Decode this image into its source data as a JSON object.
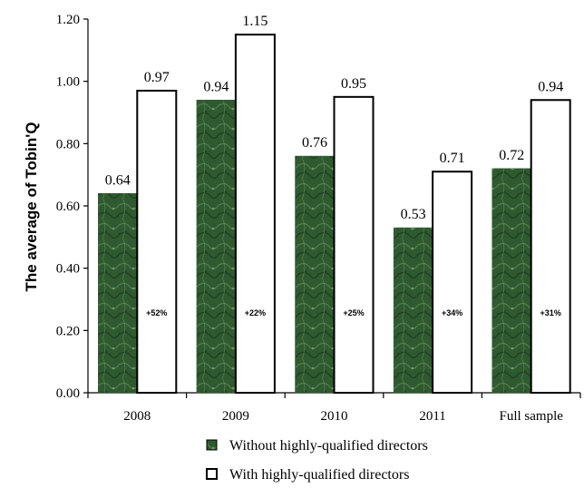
{
  "colors": {
    "without": "#2f5a2f",
    "with": "#ffffff"
  },
  "chart_data": {
    "type": "bar",
    "title": "",
    "xlabel": "",
    "ylabel": "The average of Tobin'Q",
    "ylim": [
      0,
      1.2
    ],
    "yticks": [
      "0.00",
      "0.20",
      "0.40",
      "0.60",
      "0.80",
      "1.00",
      "1.20"
    ],
    "categories": [
      "2008",
      "2009",
      "2010",
      "2011",
      "Full sample"
    ],
    "series": [
      {
        "name": "Without highly-qualified directors",
        "values": [
          0.64,
          0.94,
          0.76,
          0.53,
          0.72
        ],
        "value_labels": [
          "0.64",
          "0.94",
          "0.76",
          "0.53",
          "0.72"
        ]
      },
      {
        "name": "With highly-qualified directors",
        "values": [
          0.97,
          1.15,
          0.95,
          0.71,
          0.94
        ],
        "value_labels": [
          "0.97",
          "1.15",
          "0.95",
          "0.71",
          "0.94"
        ]
      }
    ],
    "annotations": [
      "+52%",
      "+22%",
      "+25%",
      "+34%",
      "+31%"
    ],
    "legend_position": "bottom"
  }
}
